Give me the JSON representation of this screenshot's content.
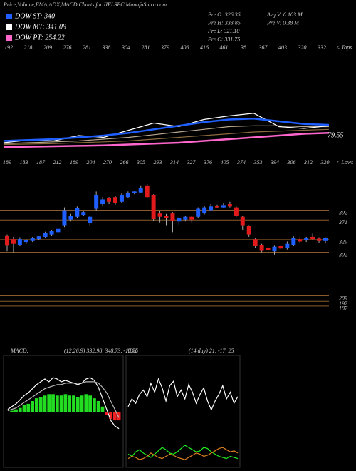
{
  "header": {
    "title": "Price,Volume,EMA,ADX,MACD Charts for IIFLSEC MunafaSutra.com",
    "legend": [
      {
        "label": "DOW ST: 340",
        "color": "#1f5fff"
      },
      {
        "label": "DOW MT: 341.09",
        "color": "#ffffff"
      },
      {
        "label": "DOW PT: 254.22",
        "color": "#ff66cc"
      }
    ],
    "info": [
      "Pre  O: 326.35",
      "Pre  H: 333.85",
      "Pre  L: 321.10",
      "Pre  C: 331.75",
      "Avg V: 0.103 M",
      "Pre  V: 0.38  M"
    ],
    "tops": [
      "192",
      "218",
      "209",
      "276",
      "281",
      "338",
      "304",
      "281",
      "379",
      "406",
      "416",
      "461",
      "38",
      "367",
      "403",
      "320",
      "332"
    ],
    "tops_label": "< Tops",
    "lows": [
      "189",
      "183",
      "187",
      "212",
      "189",
      "204",
      "270",
      "266",
      "305",
      "293",
      "314",
      "327",
      "376",
      "405",
      "374",
      "353",
      "394",
      "306",
      "312",
      "320"
    ],
    "lows_label": "< Lows",
    "macd_label": "MACD:",
    "macd_values": "(12,26,9) 332.98, 348.73, -15.75",
    "adx_label": "ADX",
    "adx_values": "(14 day) 21, -17, 25"
  },
  "chart_data": [
    {
      "type": "line",
      "categories": [
        null,
        null,
        null,
        null,
        null,
        null,
        null,
        null,
        null,
        null,
        null,
        null,
        null,
        null
      ],
      "ylim": [
        0,
        100
      ],
      "annotation": "79.55",
      "series": [
        {
          "color": "#8b6a3e",
          "values": [
            10,
            10.5,
            11,
            12,
            13,
            14,
            16,
            18,
            20,
            22,
            24,
            25,
            26,
            27
          ]
        },
        {
          "color": "#b8a890",
          "values": [
            11,
            12,
            13,
            14,
            16,
            18,
            21,
            24,
            27,
            30,
            31,
            31,
            30,
            30
          ]
        },
        {
          "color": "#ffffff",
          "values": [
            12,
            15,
            14,
            20,
            18,
            26,
            34,
            30,
            38,
            42,
            45,
            30,
            28,
            31
          ]
        },
        {
          "color": "#1f5fff",
          "values": [
            14,
            15,
            16,
            18,
            20,
            23,
            27,
            31,
            35,
            38,
            39,
            36,
            33,
            32
          ]
        },
        {
          "color": "#ff66cc",
          "values": [
            7,
            7.5,
            8,
            8.5,
            9,
            10,
            11,
            12,
            14,
            16,
            18,
            20,
            22,
            23
          ]
        }
      ]
    },
    {
      "type": "candlestick",
      "ylim": [
        170,
        460
      ],
      "up_color": "#1f5fff",
      "down_color": "#e31a1c",
      "level_color": "#8b5a2b",
      "levels": [
        392,
        371,
        329,
        302,
        209,
        197,
        187
      ],
      "open": [
        338,
        330,
        318,
        324,
        326,
        330,
        335,
        340,
        345,
        360,
        372,
        378,
        382,
        365,
        395,
        405,
        418,
        420,
        410,
        420,
        428,
        430,
        445,
        425,
        385,
        380,
        385,
        368,
        372,
        378,
        378,
        385,
        392,
        402,
        398,
        405,
        398,
        378,
        358,
        330,
        318,
        312,
        304,
        315,
        312,
        318,
        330,
        328,
        335,
        331,
        326
      ],
      "close": [
        316,
        320,
        330,
        328,
        333,
        336,
        344,
        348,
        352,
        392,
        380,
        397,
        388,
        378,
        425,
        415,
        410,
        408,
        425,
        428,
        432,
        440,
        420,
        373,
        378,
        375,
        370,
        375,
        378,
        372,
        395,
        398,
        400,
        398,
        403,
        400,
        380,
        360,
        340,
        315,
        305,
        306,
        314,
        310,
        320,
        333,
        325,
        332,
        330,
        326,
        332
      ],
      "high": [
        340,
        335,
        334,
        330,
        335,
        338,
        346,
        350,
        355,
        398,
        384,
        400,
        390,
        380,
        432,
        420,
        420,
        422,
        428,
        432,
        434,
        445,
        448,
        426,
        390,
        384,
        388,
        378,
        380,
        380,
        398,
        402,
        405,
        404,
        408,
        410,
        400,
        380,
        360,
        332,
        320,
        315,
        316,
        318,
        325,
        336,
        334,
        335,
        342,
        334,
        334
      ],
      "low": [
        304,
        300,
        315,
        320,
        324,
        328,
        333,
        338,
        343,
        356,
        368,
        375,
        380,
        360,
        390,
        402,
        405,
        404,
        408,
        418,
        426,
        428,
        418,
        370,
        366,
        360,
        345,
        360,
        368,
        366,
        376,
        383,
        390,
        396,
        396,
        398,
        378,
        350,
        335,
        312,
        302,
        300,
        297,
        308,
        308,
        315,
        322,
        324,
        328,
        322,
        321
      ]
    },
    {
      "type": "macd",
      "ylim": [
        -40,
        40
      ],
      "pos_color": "#22dd22",
      "neg_color": "#ee2222",
      "bars": [
        0,
        1,
        2,
        3,
        5,
        6,
        8,
        10,
        11,
        12,
        13,
        13,
        12,
        12,
        13,
        12,
        12,
        11,
        12,
        13,
        12,
        10,
        8,
        4,
        -2,
        -5,
        -6,
        -6
      ],
      "series": [
        {
          "color": "#ffffff",
          "values": [
            2,
            4,
            6,
            9,
            12,
            14,
            17,
            20,
            22,
            24,
            22,
            25,
            24,
            22,
            23,
            22,
            21,
            20,
            21,
            24,
            25,
            23,
            18,
            10,
            2,
            -6,
            -10,
            -12
          ]
        },
        {
          "color": "#bbbbbb",
          "values": [
            1,
            2,
            3,
            5,
            7,
            9,
            11,
            13,
            15,
            17,
            18,
            19,
            20,
            20,
            21,
            21,
            21,
            21,
            21,
            22,
            22,
            22,
            21,
            18,
            14,
            8,
            2,
            -4
          ]
        }
      ]
    },
    {
      "type": "line",
      "categories": [
        null,
        null,
        null,
        null,
        null,
        null,
        null,
        null,
        null,
        null,
        null,
        null,
        null,
        null,
        null,
        null,
        null,
        null,
        null,
        null,
        null,
        null,
        null,
        null,
        null,
        null,
        null,
        null,
        null,
        null
      ],
      "ylim": [
        0,
        100
      ],
      "series": [
        {
          "color": "#ffffff",
          "values": [
            55,
            62,
            58,
            66,
            70,
            64,
            76,
            68,
            80,
            72,
            60,
            74,
            78,
            64,
            70,
            62,
            75,
            68,
            58,
            66,
            72,
            60,
            52,
            60,
            66,
            74,
            62,
            68,
            58,
            64
          ]
        },
        {
          "color": "#22ee22",
          "values": [
            12,
            10,
            14,
            16,
            13,
            11,
            9,
            12,
            15,
            18,
            16,
            13,
            12,
            14,
            17,
            20,
            18,
            16,
            14,
            15,
            18,
            17,
            14,
            12,
            10,
            9,
            8,
            10,
            9,
            8
          ]
        },
        {
          "color": "#e08020",
          "values": [
            8,
            10,
            9,
            7,
            8,
            10,
            13,
            11,
            9,
            8,
            10,
            12,
            11,
            9,
            8,
            7,
            9,
            11,
            13,
            12,
            10,
            11,
            13,
            15,
            17,
            18,
            16,
            14,
            15,
            13
          ]
        }
      ]
    }
  ]
}
